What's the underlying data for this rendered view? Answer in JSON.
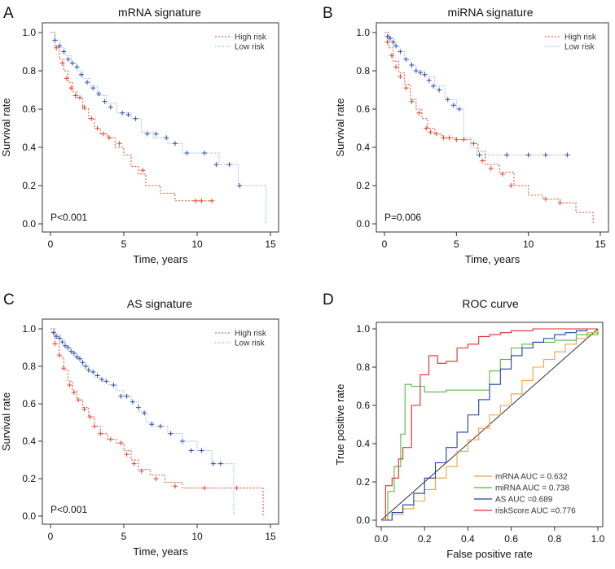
{
  "figure": {
    "colors": {
      "high_risk": "#e8412d",
      "low_risk": "#7b9ed8",
      "low_risk_marks": "#2f4fa8",
      "mrna": "#f2a03d",
      "mirna": "#52b83a",
      "as": "#1f3fa6",
      "riskscore": "#e32a2a"
    }
  },
  "chart_data": [
    {
      "type": "line",
      "panel": "A",
      "title": "mRNA signature",
      "xlabel": "Time, years",
      "ylabel": "Survival rate",
      "xlim": [
        0,
        15
      ],
      "ylim": [
        0,
        1
      ],
      "xticks": [
        "0",
        "5",
        "10",
        "15"
      ],
      "yticks": [
        "0.0",
        "0.2",
        "0.4",
        "0.6",
        "0.8",
        "1.0"
      ],
      "pvalue": "P<0.001",
      "legend": [
        "High risk",
        "Low risk"
      ],
      "series": [
        {
          "name": "High risk",
          "x": [
            0,
            0.3,
            0.6,
            0.9,
            1.2,
            1.5,
            1.8,
            2.2,
            2.6,
            3.0,
            3.4,
            3.9,
            4.4,
            5.0,
            5.5,
            6.0,
            6.5,
            7.5,
            8.5,
            10.0,
            11.2
          ],
          "y": [
            1.0,
            0.93,
            0.86,
            0.8,
            0.74,
            0.69,
            0.66,
            0.6,
            0.55,
            0.5,
            0.47,
            0.45,
            0.4,
            0.36,
            0.3,
            0.26,
            0.2,
            0.16,
            0.12,
            0.12,
            0.12
          ],
          "censor_x": [
            0.4,
            0.8,
            1.1,
            1.4,
            1.7,
            2.0,
            2.3,
            2.8,
            3.2,
            3.6,
            4.0,
            4.7,
            6.3,
            9.9,
            10.3,
            11.0
          ],
          "censor_y": [
            0.92,
            0.84,
            0.76,
            0.71,
            0.67,
            0.66,
            0.61,
            0.55,
            0.5,
            0.47,
            0.45,
            0.42,
            0.28,
            0.12,
            0.12,
            0.12
          ]
        },
        {
          "name": "Low risk",
          "x": [
            0,
            0.3,
            0.7,
            1.0,
            1.4,
            1.8,
            2.2,
            2.7,
            3.2,
            3.8,
            4.5,
            5.5,
            6.2,
            7.0,
            8.0,
            9.0,
            10.5,
            11.5,
            12.8,
            14.7
          ],
          "y": [
            1.0,
            0.96,
            0.92,
            0.88,
            0.84,
            0.8,
            0.76,
            0.72,
            0.67,
            0.63,
            0.58,
            0.55,
            0.48,
            0.45,
            0.42,
            0.37,
            0.37,
            0.31,
            0.2,
            0.0
          ],
          "censor_x": [
            0.3,
            0.6,
            0.9,
            1.2,
            1.5,
            1.8,
            2.1,
            2.5,
            2.9,
            3.3,
            3.7,
            4.1,
            4.9,
            5.3,
            5.8,
            6.6,
            7.2,
            7.9,
            8.5,
            9.3,
            10.5,
            11.3,
            12.2,
            12.9
          ],
          "censor_y": [
            0.96,
            0.93,
            0.9,
            0.86,
            0.84,
            0.82,
            0.78,
            0.74,
            0.71,
            0.68,
            0.64,
            0.61,
            0.58,
            0.57,
            0.55,
            0.47,
            0.47,
            0.45,
            0.42,
            0.37,
            0.37,
            0.31,
            0.31,
            0.2
          ]
        }
      ]
    },
    {
      "type": "line",
      "panel": "B",
      "title": "miRNA signature",
      "xlabel": "Time, years",
      "ylabel": "Survival rate",
      "xlim": [
        0,
        15
      ],
      "ylim": [
        0,
        1
      ],
      "xticks": [
        "0",
        "5",
        "10",
        "15"
      ],
      "yticks": [
        "0.0",
        "0.2",
        "0.4",
        "0.6",
        "0.8",
        "1.0"
      ],
      "pvalue": "P=0.006",
      "legend": [
        "High risk",
        "Low risk"
      ],
      "series": [
        {
          "name": "High risk",
          "x": [
            0,
            0.3,
            0.6,
            1.0,
            1.4,
            1.8,
            2.2,
            2.6,
            3.0,
            3.5,
            4.0,
            5.0,
            6.0,
            6.5,
            7.0,
            8.0,
            9.0,
            10.0,
            11.0,
            12.2,
            13.3,
            14.5
          ],
          "y": [
            1.0,
            0.92,
            0.85,
            0.79,
            0.73,
            0.65,
            0.6,
            0.55,
            0.5,
            0.47,
            0.45,
            0.44,
            0.42,
            0.38,
            0.31,
            0.27,
            0.2,
            0.15,
            0.13,
            0.11,
            0.06,
            0.0
          ],
          "censor_x": [
            0.2,
            0.5,
            0.8,
            1.1,
            1.5,
            1.9,
            2.4,
            2.9,
            3.2,
            3.6,
            4.1,
            4.5,
            5.0,
            5.5,
            6.2,
            6.8,
            7.4,
            8.2,
            8.8,
            11.2,
            12.2
          ],
          "censor_y": [
            0.95,
            0.88,
            0.82,
            0.77,
            0.71,
            0.64,
            0.58,
            0.5,
            0.48,
            0.47,
            0.45,
            0.45,
            0.44,
            0.44,
            0.42,
            0.33,
            0.29,
            0.26,
            0.2,
            0.13,
            0.11
          ]
        },
        {
          "name": "Low risk",
          "x": [
            0,
            0.3,
            0.7,
            1.0,
            1.4,
            1.8,
            2.2,
            2.8,
            3.5,
            4.2,
            5.0,
            5.5,
            6.0,
            6.4,
            7.0,
            8.0,
            10.0,
            12.8
          ],
          "y": [
            1.0,
            0.97,
            0.93,
            0.9,
            0.86,
            0.83,
            0.8,
            0.77,
            0.72,
            0.65,
            0.6,
            0.45,
            0.4,
            0.36,
            0.36,
            0.36,
            0.36,
            0.36
          ],
          "censor_x": [
            0.2,
            0.4,
            0.6,
            0.8,
            1.1,
            1.5,
            1.9,
            2.2,
            2.5,
            2.8,
            3.1,
            3.4,
            3.8,
            4.4,
            4.8,
            5.2,
            6.6,
            8.5,
            10.0,
            11.2,
            12.7
          ],
          "censor_y": [
            0.98,
            0.97,
            0.95,
            0.93,
            0.9,
            0.86,
            0.83,
            0.8,
            0.79,
            0.78,
            0.75,
            0.72,
            0.7,
            0.65,
            0.62,
            0.6,
            0.36,
            0.36,
            0.36,
            0.36,
            0.36
          ]
        }
      ]
    },
    {
      "type": "line",
      "panel": "C",
      "title": "AS signature",
      "xlabel": "Time, years",
      "ylabel": "Survival rate",
      "xlim": [
        0,
        15
      ],
      "ylim": [
        0,
        1
      ],
      "xticks": [
        "0",
        "5",
        "10",
        "15"
      ],
      "yticks": [
        "0.0",
        "0.2",
        "0.4",
        "0.6",
        "0.8",
        "1.0"
      ],
      "pvalue": "P<0.001",
      "legend": [
        "High risk",
        "Low risk"
      ],
      "series": [
        {
          "name": "High risk",
          "x": [
            0,
            0.3,
            0.6,
            0.9,
            1.2,
            1.5,
            1.8,
            2.2,
            2.6,
            3.0,
            3.4,
            3.9,
            4.5,
            5.0,
            5.5,
            6.0,
            6.8,
            7.8,
            9.0,
            12.5,
            14.5
          ],
          "y": [
            1.0,
            0.92,
            0.85,
            0.78,
            0.72,
            0.67,
            0.62,
            0.58,
            0.53,
            0.48,
            0.44,
            0.41,
            0.39,
            0.35,
            0.3,
            0.25,
            0.22,
            0.18,
            0.15,
            0.15,
            0.0
          ],
          "censor_x": [
            0.3,
            0.6,
            0.9,
            1.3,
            1.6,
            1.9,
            2.3,
            2.7,
            3.0,
            3.4,
            4.1,
            4.8,
            5.2,
            5.7,
            6.2,
            7.2,
            8.5,
            10.5,
            12.7
          ],
          "censor_y": [
            0.92,
            0.86,
            0.79,
            0.7,
            0.66,
            0.62,
            0.57,
            0.53,
            0.48,
            0.44,
            0.41,
            0.39,
            0.33,
            0.28,
            0.24,
            0.2,
            0.16,
            0.15,
            0.15
          ]
        },
        {
          "name": "Low risk",
          "x": [
            0,
            0.3,
            0.7,
            1.0,
            1.4,
            1.8,
            2.2,
            2.6,
            3.0,
            3.5,
            4.0,
            4.5,
            5.0,
            5.5,
            6.0,
            6.5,
            7.0,
            8.0,
            9.0,
            10.0,
            11.0,
            12.5
          ],
          "y": [
            1.0,
            0.97,
            0.94,
            0.9,
            0.87,
            0.84,
            0.8,
            0.77,
            0.74,
            0.72,
            0.7,
            0.67,
            0.64,
            0.61,
            0.56,
            0.5,
            0.48,
            0.44,
            0.4,
            0.35,
            0.28,
            0.0
          ],
          "censor_x": [
            0.2,
            0.4,
            0.6,
            0.8,
            1.0,
            1.2,
            1.4,
            1.6,
            1.8,
            2.0,
            2.2,
            2.4,
            2.6,
            2.9,
            3.2,
            3.5,
            3.8,
            4.3,
            4.8,
            5.2,
            5.6,
            6.0,
            6.4,
            6.9,
            7.5,
            8.2,
            9.0,
            9.6,
            10.3,
            11.1,
            11.6
          ],
          "censor_y": [
            0.98,
            0.96,
            0.95,
            0.93,
            0.91,
            0.9,
            0.88,
            0.87,
            0.85,
            0.84,
            0.82,
            0.8,
            0.78,
            0.77,
            0.75,
            0.73,
            0.72,
            0.7,
            0.64,
            0.64,
            0.61,
            0.58,
            0.55,
            0.49,
            0.48,
            0.44,
            0.4,
            0.35,
            0.35,
            0.28,
            0.28
          ]
        }
      ]
    },
    {
      "type": "line",
      "panel": "D",
      "title": "ROC curve",
      "xlabel": "False positive rate",
      "ylabel": "True positive rate",
      "xlim": [
        0,
        1
      ],
      "ylim": [
        0,
        1
      ],
      "xticks": [
        "0.0",
        "0.2",
        "0.4",
        "0.6",
        "0.8",
        "1.0"
      ],
      "yticks": [
        "0.0",
        "0.2",
        "0.4",
        "0.6",
        "0.8",
        "1.0"
      ],
      "legend": [
        "mRNA AUC = 0.632",
        "miRNA AUC = 0.738",
        "AS AUC =0.689",
        "riskScore AUC =0.776"
      ],
      "series": [
        {
          "name": "mRNA AUC = 0.632",
          "x": [
            0,
            0.05,
            0.1,
            0.15,
            0.2,
            0.25,
            0.3,
            0.35,
            0.4,
            0.45,
            0.5,
            0.55,
            0.6,
            0.65,
            0.7,
            0.75,
            0.8,
            0.85,
            0.9,
            0.95,
            1.0
          ],
          "y": [
            0,
            0.03,
            0.06,
            0.1,
            0.16,
            0.22,
            0.28,
            0.36,
            0.42,
            0.48,
            0.55,
            0.6,
            0.66,
            0.73,
            0.8,
            0.84,
            0.88,
            0.92,
            0.95,
            0.98,
            1.0
          ]
        },
        {
          "name": "miRNA AUC = 0.738",
          "x": [
            0,
            0.03,
            0.06,
            0.09,
            0.11,
            0.14,
            0.2,
            0.3,
            0.4,
            0.5,
            0.55,
            0.6,
            0.65,
            0.7,
            0.8,
            0.9,
            1.0
          ],
          "y": [
            0,
            0.15,
            0.28,
            0.45,
            0.71,
            0.7,
            0.67,
            0.68,
            0.68,
            0.78,
            0.84,
            0.9,
            0.92,
            0.93,
            0.94,
            0.97,
            1.0
          ]
        },
        {
          "name": "AS AUC =0.689",
          "x": [
            0,
            0.05,
            0.1,
            0.15,
            0.2,
            0.25,
            0.3,
            0.35,
            0.4,
            0.45,
            0.5,
            0.55,
            0.6,
            0.65,
            0.7,
            0.75,
            0.8,
            0.85,
            0.9,
            0.95,
            1.0
          ],
          "y": [
            0,
            0.04,
            0.08,
            0.14,
            0.22,
            0.3,
            0.38,
            0.46,
            0.55,
            0.63,
            0.71,
            0.79,
            0.86,
            0.9,
            0.93,
            0.95,
            0.97,
            0.98,
            0.99,
            1.0,
            1.0
          ]
        },
        {
          "name": "riskScore AUC =0.776",
          "x": [
            0,
            0.02,
            0.05,
            0.08,
            0.1,
            0.14,
            0.18,
            0.22,
            0.26,
            0.3,
            0.35,
            0.4,
            0.45,
            0.5,
            0.55,
            0.6,
            0.7,
            0.8,
            0.9,
            1.0
          ],
          "y": [
            0,
            0.18,
            0.22,
            0.32,
            0.38,
            0.6,
            0.76,
            0.86,
            0.82,
            0.83,
            0.9,
            0.92,
            0.96,
            0.97,
            0.98,
            0.99,
            1.0,
            1.0,
            1.0,
            1.0
          ]
        }
      ]
    }
  ]
}
